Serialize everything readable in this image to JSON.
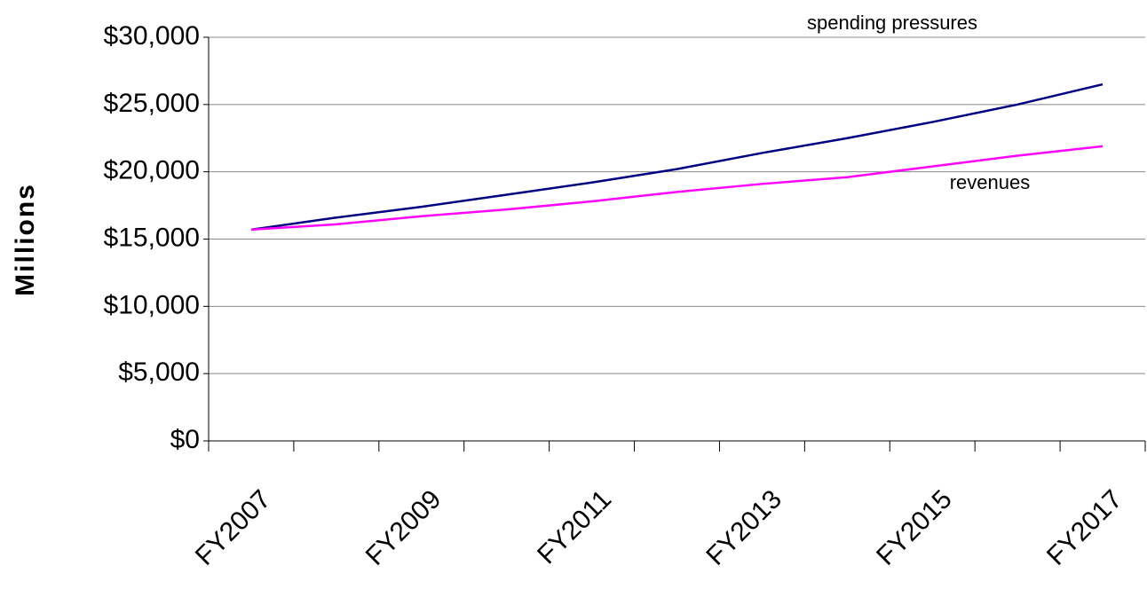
{
  "chart_data": {
    "type": "line",
    "y_label": "Millions",
    "categories": [
      "FY2007",
      null,
      "FY2009",
      null,
      "FY2011",
      null,
      "FY2013",
      null,
      "FY2015",
      null,
      "FY2017"
    ],
    "series": [
      {
        "name": "spending pressures",
        "color": "#000080",
        "values": [
          15700,
          16600,
          17400,
          18300,
          19200,
          20200,
          21400,
          22500,
          23700,
          25000,
          26500
        ]
      },
      {
        "name": "revenues",
        "color": "#ff00ff",
        "values": [
          15700,
          16100,
          16700,
          17200,
          17800,
          18500,
          19100,
          19600,
          20400,
          21200,
          21900
        ]
      }
    ],
    "ylim": [
      0,
      30000
    ],
    "yticks": [
      {
        "value": 0,
        "label": "$0"
      },
      {
        "value": 5000,
        "label": "$5,000"
      },
      {
        "value": 10000,
        "label": "$10,000"
      },
      {
        "value": 15000,
        "label": "$15,000"
      },
      {
        "value": 20000,
        "label": "$20,000"
      },
      {
        "value": 25000,
        "label": "$25,000"
      },
      {
        "value": 30000,
        "label": "$30,000"
      }
    ],
    "grid": true
  }
}
